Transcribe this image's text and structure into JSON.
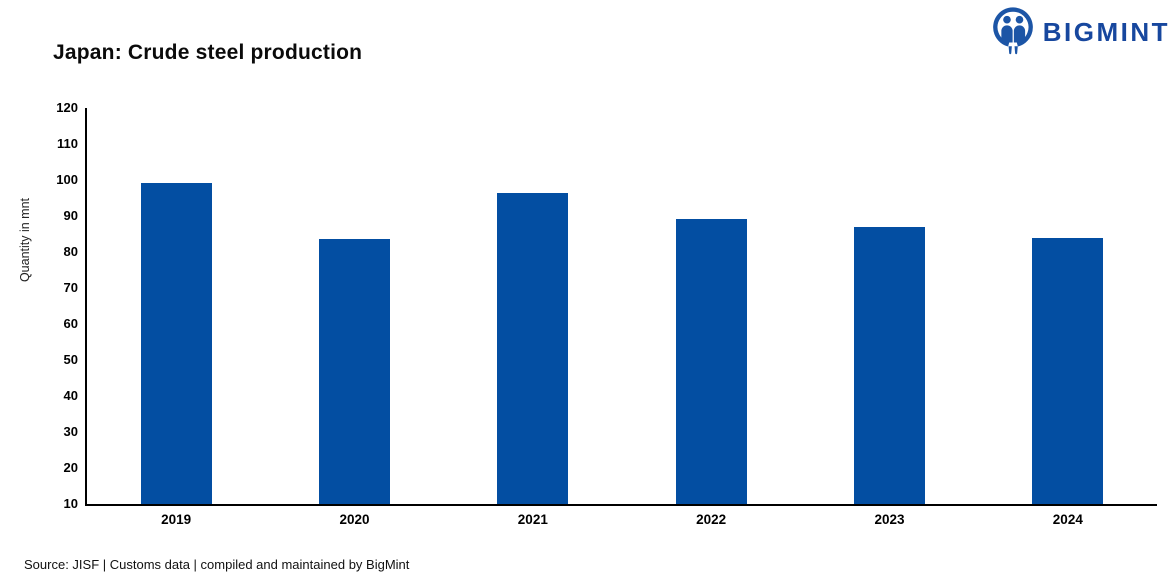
{
  "header": {
    "title": "Japan: Crude steel production"
  },
  "logo": {
    "text": "BIGMINT",
    "icon": "bigmint-people-icon",
    "icon_color": "#1c55a6",
    "text_color": "#17479e"
  },
  "chart_data": {
    "type": "bar",
    "title": "Japan: Crude steel production",
    "categories": [
      "2019",
      "2020",
      "2021",
      "2022",
      "2023",
      "2024"
    ],
    "values": [
      99.3,
      83.5,
      96.3,
      89.2,
      87.0,
      84.0
    ],
    "xlabel": "",
    "ylabel": "Quantity in mnt",
    "ylim": [
      10,
      120
    ],
    "ytick_step": 10,
    "bar_color": "#034ea2",
    "grid": false,
    "legend": "none"
  },
  "source": {
    "text": "Source: JISF | Customs data | compiled and maintained by BigMint"
  }
}
